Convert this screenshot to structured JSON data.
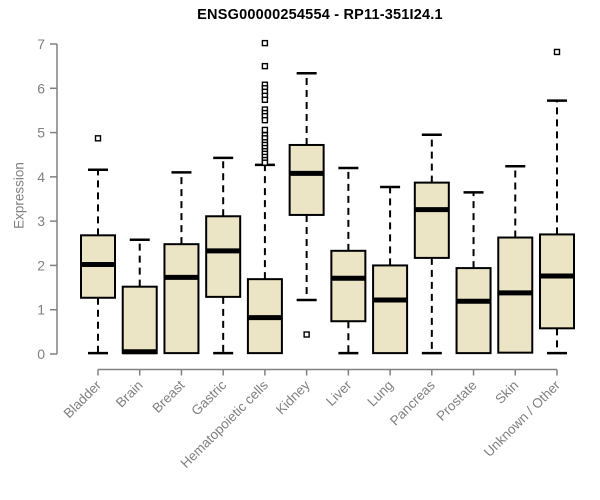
{
  "title": "ENSG00000254554 - RP11-351I24.1",
  "chart_data": {
    "type": "boxplot",
    "title": "ENSG00000254554 - RP11-351I24.1",
    "xlabel": "",
    "ylabel": "Expression",
    "ylim": [
      0,
      7
    ],
    "yticks": [
      "0",
      "1",
      "2",
      "3",
      "4",
      "5",
      "6",
      "7"
    ],
    "grid": false,
    "legend": "none",
    "categories": [
      "Bladder",
      "Brain",
      "Breast",
      "Gastric",
      "Hematopoietic cells",
      "Kidney",
      "Liver",
      "Lung",
      "Pancreas",
      "Prostate",
      "Skin",
      "Unknown / Other"
    ],
    "series": [
      {
        "category": "Bladder",
        "low": 0.02,
        "q1": 1.27,
        "median": 2.02,
        "q3": 2.68,
        "high": 4.16,
        "outliers": [
          4.87
        ]
      },
      {
        "category": "Brain",
        "low": 0.02,
        "q1": 0.02,
        "median": 0.05,
        "q3": 1.52,
        "high": 2.58,
        "outliers": []
      },
      {
        "category": "Breast",
        "low": 0.02,
        "q1": 0.02,
        "median": 1.73,
        "q3": 2.48,
        "high": 4.1,
        "outliers": []
      },
      {
        "category": "Gastric",
        "low": 0.02,
        "q1": 1.29,
        "median": 2.33,
        "q3": 3.11,
        "high": 4.43,
        "outliers": []
      },
      {
        "category": "Hematopoietic cells",
        "low": 0.02,
        "q1": 0.02,
        "median": 0.82,
        "q3": 1.69,
        "high": 4.27,
        "outliers": [
          7.02,
          6.5,
          6.08,
          6.0,
          5.92,
          5.83,
          5.74,
          5.52,
          5.44,
          5.37,
          5.28,
          5.06,
          4.94,
          4.87,
          4.78,
          4.72,
          4.65,
          4.58,
          4.52,
          4.45,
          4.38,
          4.32
        ]
      },
      {
        "category": "Kidney",
        "low": 1.22,
        "q1": 3.14,
        "median": 4.08,
        "q3": 4.72,
        "high": 6.34,
        "outliers": [
          0.44
        ]
      },
      {
        "category": "Liver",
        "low": 0.02,
        "q1": 0.74,
        "median": 1.71,
        "q3": 2.33,
        "high": 4.2,
        "outliers": []
      },
      {
        "category": "Lung",
        "low": 0.02,
        "q1": 0.02,
        "median": 1.22,
        "q3": 2.0,
        "high": 3.77,
        "outliers": []
      },
      {
        "category": "Pancreas",
        "low": 0.02,
        "q1": 2.17,
        "median": 3.26,
        "q3": 3.87,
        "high": 4.95,
        "outliers": []
      },
      {
        "category": "Prostate",
        "low": 0.02,
        "q1": 0.02,
        "median": 1.19,
        "q3": 1.94,
        "high": 3.65,
        "outliers": []
      },
      {
        "category": "Skin",
        "low": 0.02,
        "q1": 0.03,
        "median": 1.38,
        "q3": 2.63,
        "high": 4.24,
        "outliers": []
      },
      {
        "category": "Unknown / Other",
        "low": 0.02,
        "q1": 0.58,
        "median": 1.76,
        "q3": 2.7,
        "high": 5.72,
        "outliers": [
          6.82
        ]
      }
    ],
    "colors": {
      "box_fill": "#EBE4C5",
      "box_border": "#000000",
      "median": "#000000",
      "whisker": "#000000",
      "outlier_fill": "#ffffff",
      "outlier_border": "#000000",
      "axis": "#808080",
      "tick_label": "#808080",
      "title": "#000000",
      "background": "#ffffff"
    }
  }
}
